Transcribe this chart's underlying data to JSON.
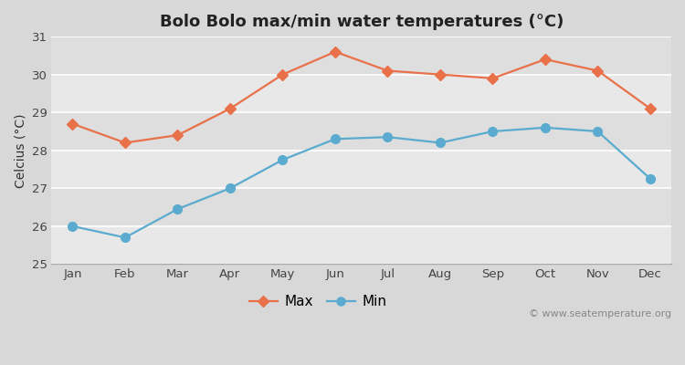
{
  "title": "Bolo Bolo max/min water temperatures (°C)",
  "ylabel": "Celcius (°C)",
  "months": [
    "Jan",
    "Feb",
    "Mar",
    "Apr",
    "May",
    "Jun",
    "Jul",
    "Aug",
    "Sep",
    "Oct",
    "Nov",
    "Dec"
  ],
  "max_values": [
    28.7,
    28.2,
    28.4,
    29.1,
    30.0,
    30.6,
    30.1,
    30.0,
    29.9,
    30.4,
    30.1,
    29.1
  ],
  "min_values": [
    26.0,
    25.7,
    26.45,
    27.0,
    27.75,
    28.3,
    28.35,
    28.2,
    28.5,
    28.6,
    28.5,
    27.25
  ],
  "max_color": "#e8714a",
  "min_color": "#5aabcf",
  "fig_bg_color": "#d8d8d8",
  "plot_bg_color": "#e8e8e8",
  "band_color1": "#e8e8e8",
  "band_color2": "#dedede",
  "grid_color": "#ffffff",
  "ylim": [
    25,
    31
  ],
  "yticks": [
    25,
    26,
    27,
    28,
    29,
    30,
    31
  ],
  "watermark": "© www.seatemperature.org",
  "legend_max": "Max",
  "legend_min": "Min",
  "title_fontsize": 13,
  "label_fontsize": 10,
  "tick_fontsize": 9.5,
  "watermark_fontsize": 8
}
